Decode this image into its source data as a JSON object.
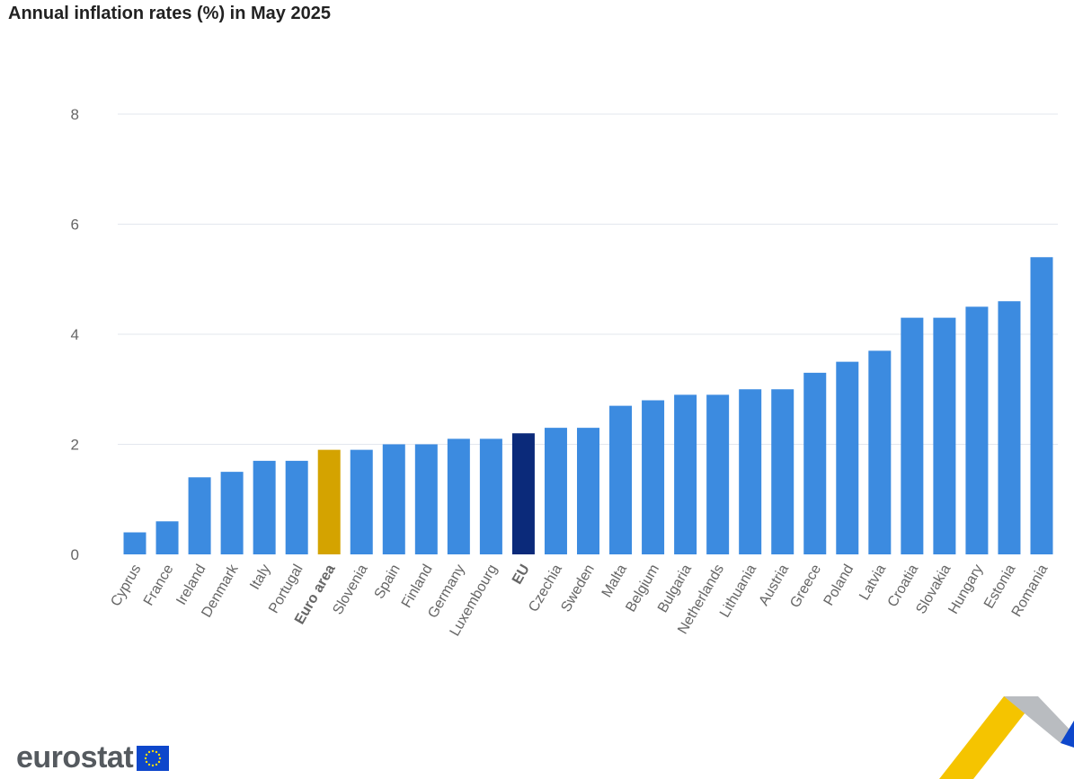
{
  "chart_data": {
    "type": "bar",
    "title": "Annual inflation rates (%) in May 2025",
    "xlabel": "",
    "ylabel": "",
    "ylim": [
      0,
      8
    ],
    "yticks": [
      0,
      2,
      4,
      6,
      8
    ],
    "grid": true,
    "categories": [
      "Cyprus",
      "France",
      "Ireland",
      "Denmark",
      "Italy",
      "Portugal",
      "Euro area",
      "Slovenia",
      "Spain",
      "Finland",
      "Germany",
      "Luxembourg",
      "EU",
      "Czechia",
      "Sweden",
      "Malta",
      "Belgium",
      "Bulgaria",
      "Netherlands",
      "Lithuania",
      "Austria",
      "Greece",
      "Poland",
      "Latvia",
      "Croatia",
      "Slovakia",
      "Hungary",
      "Estonia",
      "Romania"
    ],
    "values": [
      0.4,
      0.6,
      1.4,
      1.5,
      1.7,
      1.7,
      1.9,
      1.9,
      2.0,
      2.0,
      2.1,
      2.1,
      2.2,
      2.3,
      2.3,
      2.7,
      2.8,
      2.9,
      2.9,
      3.0,
      3.0,
      3.3,
      3.5,
      3.7,
      4.3,
      4.3,
      4.5,
      4.6,
      5.4
    ],
    "highlight": {
      "Euro area": "#d4a300",
      "EU": "#0b2a7a"
    },
    "bold_categories": [
      "Euro area",
      "EU"
    ],
    "colors": {
      "bar": "#3c8be0",
      "grid": "#e3e7ee",
      "axis_text": "#666666",
      "title": "#222222"
    }
  },
  "branding": {
    "logo_text": "eurostat"
  }
}
